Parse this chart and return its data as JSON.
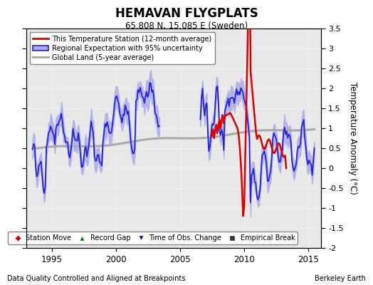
{
  "title": "HEMAVAN FLYGPLATS",
  "subtitle": "65.808 N, 15.085 E (Sweden)",
  "ylabel": "Temperature Anomaly (°C)",
  "footer_left": "Data Quality Controlled and Aligned at Breakpoints",
  "footer_right": "Berkeley Earth",
  "xlim": [
    1993.0,
    2016.0
  ],
  "ylim": [
    -2.0,
    3.5
  ],
  "yticks": [
    -2,
    -1.5,
    -1,
    -0.5,
    0,
    0.5,
    1,
    1.5,
    2,
    2.5,
    3,
    3.5
  ],
  "xticks": [
    1995,
    2000,
    2005,
    2010,
    2015
  ],
  "regional_color": "#2222dd",
  "regional_fill": "#aaaaee",
  "station_color": "#dd0000",
  "global_color": "#aaaaaa",
  "fig_bg": "#ffffff",
  "plot_bg": "#e8e8e8",
  "grid_color": "#ffffff",
  "bottom_legend": [
    {
      "label": "Station Move",
      "marker": "D",
      "color": "#cc0000"
    },
    {
      "label": "Record Gap",
      "marker": "^",
      "color": "#007700"
    },
    {
      "label": "Time of Obs. Change",
      "marker": "v",
      "color": "#0000cc"
    },
    {
      "label": "Empirical Break",
      "marker": "s",
      "color": "#333333"
    }
  ]
}
